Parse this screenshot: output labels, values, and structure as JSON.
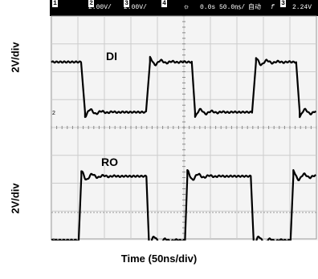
{
  "chart_data": {
    "type": "line",
    "title": "",
    "xlabel": "Time (50ns/div)",
    "ylabels": [
      "2V/div",
      "2V/div"
    ],
    "x_divisions": 10,
    "y_divisions": 8,
    "status_bar": {
      "ch1": "1",
      "ch2": "2",
      "ch2_scale": "2.00V/",
      "ch3": "3",
      "ch3_scale": "2.00V/",
      "ch4": "4",
      "trigger_icon": "sun-trigger-icon",
      "time_offset": "0.0s",
      "time_scale": "50.0㎱/",
      "mode": "自动",
      "trigger_slope": "f",
      "trigger_ch": "3",
      "trigger_level": "2.24V"
    },
    "series": [
      {
        "name": "DI",
        "marker": "2",
        "edges_div": [
          1.15,
          3.6,
          5.3,
          7.6,
          9.25
        ],
        "initial_state": "high",
        "high_div": 1.65,
        "low_div": 3.45,
        "edge_time_div": 0.12
      },
      {
        "name": "RO",
        "marker": "3",
        "edges_div": [
          1.05,
          3.6,
          5.05,
          7.55,
          9.05
        ],
        "initial_state": "low",
        "high_div": 5.75,
        "low_div": 8.05,
        "edge_time_div": 0.08
      }
    ],
    "grid": true,
    "color_trace": "#000000",
    "color_grid": "#cccccc"
  }
}
